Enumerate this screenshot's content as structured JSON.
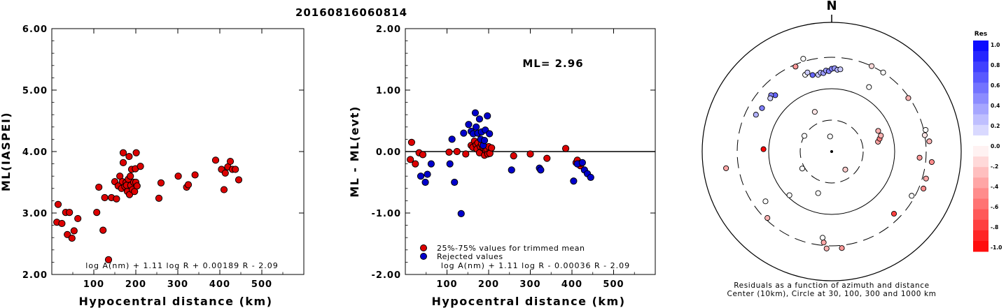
{
  "title": "20160816060814",
  "colors": {
    "accepted": "#dd0000",
    "rejected": "#0000cc",
    "axis": "#000000"
  },
  "chart_data": [
    {
      "type": "scatter",
      "id": "ml-vs-distance",
      "xlabel": "Hypocentral distance (km)",
      "ylabel": "ML(IASPEI)",
      "xlim": [
        0,
        600
      ],
      "ylim": [
        2.0,
        6.0
      ],
      "xticks": [
        "100",
        "200",
        "300",
        "400",
        "500"
      ],
      "yticks": [
        "2.00",
        "3.00",
        "4.00",
        "5.00",
        "6.00"
      ],
      "formula": "log A(nm) + 1.11 log R + 0.00189 R - 2.09",
      "series": [
        {
          "color": "#dd0000",
          "points": [
            [
              12,
              2.85
            ],
            [
              15,
              3.14
            ],
            [
              24,
              2.83
            ],
            [
              33,
              3.01
            ],
            [
              37,
              2.65
            ],
            [
              42,
              3.01
            ],
            [
              48,
              2.59
            ],
            [
              53,
              2.71
            ],
            [
              62,
              2.91
            ],
            [
              107,
              3.01
            ],
            [
              112,
              3.42
            ],
            [
              122,
              2.72
            ],
            [
              126,
              3.25
            ],
            [
              135,
              2.24
            ],
            [
              142,
              3.25
            ],
            [
              150,
              3.51
            ],
            [
              154,
              3.23
            ],
            [
              158,
              3.44
            ],
            [
              162,
              3.6
            ],
            [
              166,
              3.4
            ],
            [
              168,
              3.51
            ],
            [
              170,
              3.82
            ],
            [
              170,
              3.98
            ],
            [
              174,
              3.43
            ],
            [
              177,
              3.5
            ],
            [
              178,
              3.45
            ],
            [
              180,
              3.35
            ],
            [
              182,
              3.55
            ],
            [
              184,
              3.92
            ],
            [
              185,
              3.3
            ],
            [
              187,
              3.6
            ],
            [
              188,
              3.45
            ],
            [
              190,
              3.71
            ],
            [
              192,
              3.38
            ],
            [
              195,
              3.5
            ],
            [
              197,
              3.35
            ],
            [
              199,
              3.72
            ],
            [
              200,
              3.5
            ],
            [
              201,
              3.98
            ],
            [
              203,
              3.44
            ],
            [
              211,
              3.76
            ],
            [
              255,
              3.24
            ],
            [
              260,
              3.49
            ],
            [
              321,
              3.42
            ],
            [
              325,
              3.46
            ],
            [
              341,
              3.62
            ],
            [
              301,
              3.6
            ],
            [
              390,
              3.86
            ],
            [
              404,
              3.71
            ],
            [
              410,
              3.38
            ],
            [
              413,
              3.65
            ],
            [
              419,
              3.75
            ],
            [
              425,
              3.84
            ],
            [
              430,
              3.71
            ],
            [
              437,
              3.71
            ],
            [
              445,
              3.54
            ]
          ]
        }
      ]
    },
    {
      "type": "scatter",
      "id": "residual-vs-distance",
      "xlabel": "Hypocentral distance (km)",
      "ylabel": "ML - ML(evt)",
      "xlim": [
        0,
        600
      ],
      "ylim": [
        -2.0,
        2.0
      ],
      "xticks": [
        "100",
        "200",
        "300",
        "400",
        "500"
      ],
      "yticks": [
        "-2.00",
        "-1.00",
        "0.00",
        "1.00",
        "2.00"
      ],
      "annotation": "ML= 2.96",
      "formula": "log A(nm) + 1.11 log R - 0.00036 R - 2.09",
      "legend": [
        "25%-75% values for trimmed mean",
        "Rejected values"
      ],
      "series": [
        {
          "name": "25%-75% values for trimmed mean",
          "color": "#dd0000",
          "points": [
            [
              12,
              -0.13
            ],
            [
              15,
              0.15
            ],
            [
              24,
              -0.2
            ],
            [
              33,
              -0.02
            ],
            [
              42,
              -0.05
            ],
            [
              105,
              -0.01
            ],
            [
              124,
              0.0
            ],
            [
              145,
              -0.04
            ],
            [
              158,
              0.1
            ],
            [
              162,
              0.07
            ],
            [
              166,
              0.17
            ],
            [
              170,
              0.11
            ],
            [
              172,
              0.04
            ],
            [
              174,
              0.14
            ],
            [
              178,
              -0.02
            ],
            [
              180,
              0.08
            ],
            [
              183,
              0.12
            ],
            [
              186,
              0.06
            ],
            [
              189,
              0.05
            ],
            [
              190,
              -0.06
            ],
            [
              193,
              0.02
            ],
            [
              196,
              0.03
            ],
            [
              198,
              -0.04
            ],
            [
              200,
              0.08
            ],
            [
              203,
              -0.03
            ],
            [
              207,
              0.06
            ],
            [
              260,
              -0.07
            ],
            [
              300,
              -0.04
            ],
            [
              340,
              -0.11
            ],
            [
              385,
              0.05
            ],
            [
              410,
              -0.18
            ],
            [
              413,
              -0.14
            ],
            [
              420,
              -0.23
            ],
            [
              421,
              -0.19
            ]
          ]
        },
        {
          "name": "Rejected values",
          "color": "#0000cc",
          "points": [
            [
              37,
              -0.4
            ],
            [
              48,
              -0.5
            ],
            [
              53,
              -0.37
            ],
            [
              62,
              -0.2
            ],
            [
              107,
              -0.2
            ],
            [
              112,
              0.2
            ],
            [
              118,
              -0.5
            ],
            [
              134,
              -1.01
            ],
            [
              140,
              0.3
            ],
            [
              152,
              0.44
            ],
            [
              158,
              0.33
            ],
            [
              163,
              0.29
            ],
            [
              168,
              0.63
            ],
            [
              170,
              0.4
            ],
            [
              174,
              0.3
            ],
            [
              178,
              0.53
            ],
            [
              181,
              0.2
            ],
            [
              183,
              0.32
            ],
            [
              187,
              0.1
            ],
            [
              190,
              0.18
            ],
            [
              192,
              0.35
            ],
            [
              197,
              0.58
            ],
            [
              202,
              0.29
            ],
            [
              255,
              -0.3
            ],
            [
              322,
              -0.27
            ],
            [
              325,
              -0.3
            ],
            [
              404,
              -0.48
            ],
            [
              413,
              -0.2
            ],
            [
              425,
              -0.18
            ],
            [
              430,
              -0.3
            ],
            [
              437,
              -0.36
            ],
            [
              445,
              -0.42
            ]
          ]
        }
      ]
    },
    {
      "type": "polar-scatter",
      "id": "azimuth-residuals",
      "north_label": "N",
      "caption_line1": "Residuals as a function of azimuth and distance",
      "caption_line2": "Center (10km), Circle at 30, 100, 300 and 1000 km",
      "colorbar_title": "Res",
      "colorbar_ticks": [
        "1.0",
        "0.8",
        "0.6",
        "0.4",
        "0.2",
        "0.0",
        "-.2",
        "-.4",
        "-.6",
        "-.8",
        "-1.0"
      ],
      "stations": [
        {
          "az": 354,
          "dist": 17,
          "res": 0.0
        },
        {
          "az": 143,
          "dist": 22,
          "res": -0.2
        },
        {
          "az": 300,
          "dist": 30,
          "res": 0.0
        },
        {
          "az": 240,
          "dist": 33,
          "res": 0.0
        },
        {
          "az": 337,
          "dist": 47,
          "res": -0.1
        },
        {
          "az": 198,
          "dist": 48,
          "res": 0.0
        },
        {
          "az": 224,
          "dist": 92,
          "res": 0.0
        },
        {
          "az": 78,
          "dist": 55,
          "res": -0.35
        },
        {
          "az": 75,
          "dist": 60,
          "res": -0.5
        },
        {
          "az": 72,
          "dist": 65,
          "res": -0.3
        },
        {
          "az": 66,
          "dist": 63,
          "res": -0.3
        },
        {
          "az": 30,
          "dist": 150,
          "res": 0.0
        },
        {
          "az": 25,
          "dist": 300,
          "res": -0.15
        },
        {
          "az": 33,
          "dist": 300,
          "res": 0.0
        },
        {
          "az": 350,
          "dist": 170,
          "res": 0.2
        },
        {
          "az": 352,
          "dist": 180,
          "res": 0.3
        },
        {
          "az": 354,
          "dist": 175,
          "res": 0.4
        },
        {
          "az": 356,
          "dist": 190,
          "res": 0.4
        },
        {
          "az": 358,
          "dist": 185,
          "res": 0.5
        },
        {
          "az": 0,
          "dist": 200,
          "res": 0.5
        },
        {
          "az": 2,
          "dist": 205,
          "res": 0.4
        },
        {
          "az": 4,
          "dist": 195,
          "res": 0.3
        },
        {
          "az": 6,
          "dist": 200,
          "res": 0.2
        },
        {
          "az": 341,
          "dist": 190,
          "res": 0.0
        },
        {
          "az": 343,
          "dist": 200,
          "res": 0.2
        },
        {
          "az": 346,
          "dist": 175,
          "res": 0.6
        },
        {
          "az": 315,
          "dist": 180,
          "res": 0.6
        },
        {
          "az": 313,
          "dist": 200,
          "res": 0.5
        },
        {
          "az": 311,
          "dist": 190,
          "res": 0.2
        },
        {
          "az": 296,
          "dist": 210,
          "res": 0.3
        },
        {
          "az": 302,
          "dist": 195,
          "res": 0.5
        },
        {
          "az": 337,
          "dist": 280,
          "res": -0.4
        },
        {
          "az": 343,
          "dist": 330,
          "res": 0.0
        },
        {
          "az": 272,
          "dist": 120,
          "res": -1.0
        },
        {
          "az": 261,
          "dist": 460,
          "res": -0.35
        },
        {
          "az": 233,
          "dist": 200,
          "res": 0.0
        },
        {
          "az": 224,
          "dist": 280,
          "res": -0.3
        },
        {
          "az": 186,
          "dist": 230,
          "res": 0.0
        },
        {
          "az": 185,
          "dist": 270,
          "res": -0.35
        },
        {
          "az": 183,
          "dist": 330,
          "res": -0.3
        },
        {
          "az": 174,
          "dist": 330,
          "res": -0.4
        },
        {
          "az": 135,
          "dist": 240,
          "res": -0.75
        },
        {
          "az": 119,
          "dist": 270,
          "res": 0.0
        },
        {
          "az": 112,
          "dist": 350,
          "res": -0.45
        },
        {
          "az": 106,
          "dist": 340,
          "res": -0.35
        },
        {
          "az": 96,
          "dist": 370,
          "res": -0.45
        },
        {
          "az": 84,
          "dist": 340,
          "res": -0.3
        },
        {
          "az": 80,
          "dist": 300,
          "res": -0.1
        },
        {
          "az": 77,
          "dist": 320,
          "res": 0.0
        },
        {
          "az": 55,
          "dist": 290,
          "res": -0.3
        },
        {
          "az": 94,
          "dist": 240,
          "res": -0.4
        }
      ]
    }
  ]
}
